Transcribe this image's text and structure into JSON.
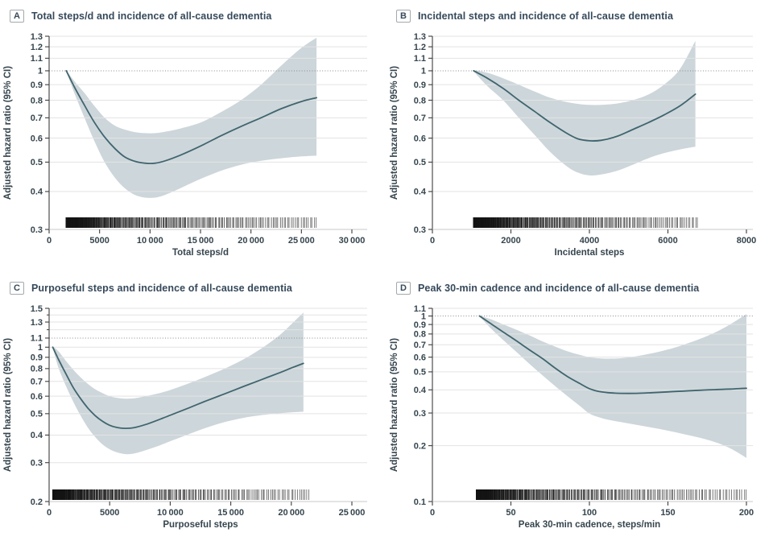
{
  "figure": {
    "description": "Four-panel figure of adjusted hazard ratios for incident all-cause dementia by daily step metrics, each with 95% CI band, dotted reference line, and data-density rug bar"
  },
  "colors": {
    "curve": "#3f656e",
    "ci_band": "#cdd6da",
    "grid": "#e3e3e3",
    "reference_line": "#8c8c8c",
    "rug": "#141414",
    "axis_line": "#3d3d3d",
    "baseline": "#c9c9c9",
    "title_text": "#36495a",
    "tick_text": "#36454e"
  },
  "chart_data": [
    {
      "type": "line",
      "panel_label": "A",
      "title": "Total steps/d and incidence of all-cause dementia",
      "xlabel": "Total steps/d",
      "ylabel": "Adjusted hazard ratio (95% CI)",
      "y_scale": "log",
      "ylim": [
        0.3,
        1.3
      ],
      "y_ticks": [
        0.3,
        0.4,
        0.5,
        0.6,
        0.7,
        0.8,
        0.9,
        1,
        1.1,
        1.2,
        1.3
      ],
      "y_tick_labels": [
        "0.3",
        "0.4",
        "0.5",
        "0.6",
        "0.7",
        "0.8",
        "0.9",
        "1",
        "1.1",
        "1.2",
        "1.3"
      ],
      "y_minor_ticks": [],
      "x_ticks": [
        0,
        5000,
        10000,
        15000,
        20000,
        25000,
        30000
      ],
      "x_tick_labels": [
        "0",
        "5000",
        "10 000",
        "15 000",
        "20 000",
        "25 000",
        "30 000"
      ],
      "reference_line": 1.0,
      "curve": [
        [
          1700,
          1.0
        ],
        [
          2500,
          0.885
        ],
        [
          3500,
          0.77
        ],
        [
          4500,
          0.675
        ],
        [
          5500,
          0.605
        ],
        [
          6500,
          0.555
        ],
        [
          7500,
          0.52
        ],
        [
          8500,
          0.503
        ],
        [
          9500,
          0.496
        ],
        [
          10500,
          0.496
        ],
        [
          11500,
          0.505
        ],
        [
          13000,
          0.527
        ],
        [
          15000,
          0.565
        ],
        [
          17000,
          0.61
        ],
        [
          19000,
          0.655
        ],
        [
          21000,
          0.7
        ],
        [
          23000,
          0.75
        ],
        [
          25000,
          0.792
        ],
        [
          26500,
          0.815
        ]
      ],
      "ci_band": [
        [
          1700,
          0.995,
          1.005
        ],
        [
          2500,
          0.845,
          0.925
        ],
        [
          3500,
          0.7,
          0.845
        ],
        [
          4500,
          0.585,
          0.765
        ],
        [
          5500,
          0.5,
          0.7
        ],
        [
          6500,
          0.445,
          0.66
        ],
        [
          7500,
          0.41,
          0.64
        ],
        [
          8500,
          0.39,
          0.628
        ],
        [
          9500,
          0.382,
          0.623
        ],
        [
          10500,
          0.382,
          0.623
        ],
        [
          11500,
          0.39,
          0.63
        ],
        [
          13000,
          0.41,
          0.645
        ],
        [
          15000,
          0.44,
          0.675
        ],
        [
          17000,
          0.468,
          0.73
        ],
        [
          19000,
          0.49,
          0.8
        ],
        [
          21000,
          0.505,
          0.9
        ],
        [
          23000,
          0.515,
          1.04
        ],
        [
          25000,
          0.522,
          1.19
        ],
        [
          26500,
          0.525,
          1.285
        ]
      ],
      "rug": {
        "start": 1700,
        "end": 26500
      }
    },
    {
      "type": "line",
      "panel_label": "B",
      "title": "Incidental steps and incidence of all-cause dementia",
      "xlabel": "Incidental steps",
      "ylabel": "Adjusted hazard ratio (95% CI)",
      "y_scale": "log",
      "ylim": [
        0.3,
        1.3
      ],
      "y_ticks": [
        0.3,
        0.4,
        0.5,
        0.6,
        0.7,
        0.8,
        0.9,
        1,
        1.1,
        1.2,
        1.3
      ],
      "y_tick_labels": [
        "0.3",
        "0.4",
        "0.5",
        "0.6",
        "0.7",
        "0.8",
        "0.9",
        "1",
        "1.1",
        "1.2",
        "1.3"
      ],
      "y_minor_ticks": [],
      "x_ticks": [
        0,
        2000,
        4000,
        6000,
        8000
      ],
      "x_tick_labels": [
        "0",
        "2000",
        "4000",
        "6000",
        "8000"
      ],
      "reference_line": 1.0,
      "curve": [
        [
          1050,
          1.0
        ],
        [
          1400,
          0.945
        ],
        [
          1800,
          0.875
        ],
        [
          2200,
          0.8
        ],
        [
          2600,
          0.735
        ],
        [
          3000,
          0.675
        ],
        [
          3400,
          0.625
        ],
        [
          3700,
          0.597
        ],
        [
          4000,
          0.588
        ],
        [
          4300,
          0.59
        ],
        [
          4700,
          0.608
        ],
        [
          5100,
          0.64
        ],
        [
          5500,
          0.675
        ],
        [
          5900,
          0.715
        ],
        [
          6300,
          0.765
        ],
        [
          6700,
          0.838
        ]
      ],
      "ci_band": [
        [
          1050,
          0.995,
          1.005
        ],
        [
          1400,
          0.89,
          0.985
        ],
        [
          1800,
          0.8,
          0.945
        ],
        [
          2200,
          0.7,
          0.9
        ],
        [
          2600,
          0.615,
          0.855
        ],
        [
          3000,
          0.54,
          0.815
        ],
        [
          3400,
          0.487,
          0.79
        ],
        [
          3700,
          0.462,
          0.778
        ],
        [
          4000,
          0.452,
          0.772
        ],
        [
          4300,
          0.455,
          0.772
        ],
        [
          4700,
          0.468,
          0.78
        ],
        [
          5100,
          0.49,
          0.8
        ],
        [
          5500,
          0.515,
          0.835
        ],
        [
          5900,
          0.535,
          0.9
        ],
        [
          6300,
          0.55,
          1.01
        ],
        [
          6700,
          0.562,
          1.255
        ]
      ],
      "rug": {
        "start": 1050,
        "end": 6750
      }
    },
    {
      "type": "line",
      "panel_label": "C",
      "title": "Purposeful steps and incidence of all-cause dementia",
      "xlabel": "Purposeful steps",
      "ylabel": "Adjusted hazard ratio (95% CI)",
      "y_scale": "log",
      "ylim": [
        0.2,
        1.5
      ],
      "y_ticks": [
        0.2,
        0.3,
        0.4,
        0.5,
        0.6,
        0.7,
        0.8,
        0.9,
        1,
        1.1,
        1.3,
        1.5
      ],
      "y_tick_labels": [
        "0.2",
        "0.3",
        "0.4",
        "0.5",
        "0.6",
        "0.7",
        "0.8",
        "0.9",
        "1",
        "1.1",
        "1.3",
        "1.5"
      ],
      "y_minor_ticks": [
        1.2,
        1.4
      ],
      "x_ticks": [
        0,
        5000,
        10000,
        15000,
        20000,
        25000
      ],
      "x_tick_labels": [
        "0",
        "5000",
        "10 000",
        "15 000",
        "20 000",
        "25 000"
      ],
      "reference_line": 1.1,
      "curve": [
        [
          300,
          1.0
        ],
        [
          800,
          0.875
        ],
        [
          1400,
          0.755
        ],
        [
          2000,
          0.655
        ],
        [
          2600,
          0.585
        ],
        [
          3200,
          0.53
        ],
        [
          3800,
          0.49
        ],
        [
          4400,
          0.462
        ],
        [
          5000,
          0.443
        ],
        [
          5600,
          0.433
        ],
        [
          6300,
          0.429
        ],
        [
          7000,
          0.432
        ],
        [
          8000,
          0.447
        ],
        [
          9000,
          0.468
        ],
        [
          10000,
          0.492
        ],
        [
          11500,
          0.53
        ],
        [
          13000,
          0.572
        ],
        [
          14500,
          0.615
        ],
        [
          16000,
          0.662
        ],
        [
          17500,
          0.712
        ],
        [
          19000,
          0.765
        ],
        [
          20000,
          0.805
        ],
        [
          21000,
          0.845
        ]
      ],
      "ci_band": [
        [
          300,
          0.99,
          1.01
        ],
        [
          800,
          0.8,
          0.955
        ],
        [
          1400,
          0.665,
          0.865
        ],
        [
          2000,
          0.565,
          0.79
        ],
        [
          2600,
          0.49,
          0.73
        ],
        [
          3200,
          0.432,
          0.682
        ],
        [
          3800,
          0.392,
          0.645
        ],
        [
          4400,
          0.363,
          0.62
        ],
        [
          5000,
          0.345,
          0.6
        ],
        [
          5600,
          0.334,
          0.59
        ],
        [
          6300,
          0.328,
          0.585
        ],
        [
          7000,
          0.33,
          0.587
        ],
        [
          8000,
          0.342,
          0.6
        ],
        [
          9000,
          0.357,
          0.617
        ],
        [
          10000,
          0.375,
          0.64
        ],
        [
          11500,
          0.403,
          0.685
        ],
        [
          13000,
          0.432,
          0.738
        ],
        [
          14500,
          0.458,
          0.8
        ],
        [
          16000,
          0.478,
          0.878
        ],
        [
          17500,
          0.492,
          0.985
        ],
        [
          19000,
          0.502,
          1.13
        ],
        [
          20000,
          0.507,
          1.27
        ],
        [
          21000,
          0.51,
          1.435
        ]
      ],
      "rug": {
        "start": 300,
        "end": 21500
      }
    },
    {
      "type": "line",
      "panel_label": "D",
      "title": "Peak 30-min cadence and incidence of all-cause dementia",
      "xlabel": "Peak 30-min cadence, steps/min",
      "ylabel": "Adjusted hazard ratio (95% CI)",
      "y_scale": "log",
      "ylim": [
        0.1,
        1.1
      ],
      "y_ticks": [
        0.1,
        0.2,
        0.3,
        0.4,
        0.5,
        0.6,
        0.7,
        0.8,
        0.9,
        1,
        1.1
      ],
      "y_tick_labels": [
        "0.1",
        "0.2",
        "0.3",
        "0.4",
        "0.5",
        "0.6",
        "0.7",
        "0.8",
        "0.9",
        "1",
        "1.1"
      ],
      "y_minor_ticks": [],
      "x_ticks": [
        0,
        50,
        100,
        150,
        200
      ],
      "x_tick_labels": [
        "0",
        "50",
        "100",
        "150",
        "200"
      ],
      "reference_line": 1.0,
      "curve": [
        [
          30,
          1.0
        ],
        [
          38,
          0.9
        ],
        [
          46,
          0.81
        ],
        [
          54,
          0.73
        ],
        [
          62,
          0.655
        ],
        [
          70,
          0.59
        ],
        [
          78,
          0.525
        ],
        [
          86,
          0.472
        ],
        [
          94,
          0.432
        ],
        [
          100,
          0.406
        ],
        [
          106,
          0.392
        ],
        [
          112,
          0.386
        ],
        [
          120,
          0.383
        ],
        [
          130,
          0.383
        ],
        [
          140,
          0.386
        ],
        [
          150,
          0.39
        ],
        [
          160,
          0.394
        ],
        [
          170,
          0.398
        ],
        [
          180,
          0.401
        ],
        [
          190,
          0.404
        ],
        [
          200,
          0.408
        ]
      ],
      "ci_band": [
        [
          30,
          0.995,
          1.005
        ],
        [
          38,
          0.845,
          0.955
        ],
        [
          46,
          0.73,
          0.895
        ],
        [
          54,
          0.635,
          0.84
        ],
        [
          62,
          0.55,
          0.785
        ],
        [
          70,
          0.48,
          0.73
        ],
        [
          78,
          0.42,
          0.685
        ],
        [
          86,
          0.37,
          0.645
        ],
        [
          94,
          0.327,
          0.617
        ],
        [
          100,
          0.298,
          0.6
        ],
        [
          106,
          0.285,
          0.592
        ],
        [
          112,
          0.276,
          0.589
        ],
        [
          120,
          0.268,
          0.592
        ],
        [
          130,
          0.259,
          0.607
        ],
        [
          140,
          0.25,
          0.63
        ],
        [
          150,
          0.241,
          0.66
        ],
        [
          160,
          0.231,
          0.7
        ],
        [
          170,
          0.221,
          0.75
        ],
        [
          180,
          0.209,
          0.815
        ],
        [
          190,
          0.193,
          0.905
        ],
        [
          200,
          0.172,
          1.025
        ]
      ],
      "rug": {
        "start": 28,
        "end": 200
      }
    }
  ]
}
